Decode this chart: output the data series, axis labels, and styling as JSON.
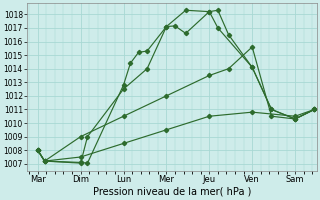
{
  "xlabel": "Pression niveau de la mer( hPa )",
  "xlabels": [
    "Mar",
    "Dim",
    "Lun",
    "Mer",
    "Jeu",
    "Ven",
    "Sam"
  ],
  "ylim": [
    1006.5,
    1018.8
  ],
  "yticks": [
    1007,
    1008,
    1009,
    1010,
    1011,
    1012,
    1013,
    1014,
    1015,
    1016,
    1017,
    1018
  ],
  "background_color": "#ceecea",
  "grid_color": "#a8d8d4",
  "line_color": "#2d6b2d",
  "figsize": [
    3.2,
    2.0
  ],
  "dpi": 100,
  "line1_x": [
    0,
    0.16,
    1.0,
    1.16,
    2.0,
    2.16,
    2.35,
    2.55,
    3.0,
    3.2,
    3.45,
    4.0,
    4.2,
    4.45,
    5.0,
    5.45,
    6.0,
    6.45
  ],
  "line1_y": [
    1008.0,
    1007.2,
    1007.1,
    1007.05,
    1012.8,
    1014.4,
    1015.2,
    1015.3,
    1017.1,
    1017.15,
    1016.6,
    1018.2,
    1018.3,
    1016.5,
    1014.1,
    1011.0,
    1010.3,
    1011.0
  ],
  "line2_x": [
    0,
    0.16,
    1.0,
    1.16,
    2.0,
    2.55,
    3.0,
    3.45,
    4.0,
    4.2,
    5.0,
    5.45,
    6.0,
    6.45
  ],
  "line2_y": [
    1008.0,
    1007.2,
    1007.05,
    1009.0,
    1012.5,
    1014.0,
    1017.1,
    1018.3,
    1018.2,
    1017.0,
    1014.1,
    1011.0,
    1010.3,
    1011.0
  ],
  "line3_x": [
    0,
    0.16,
    1.0,
    2.0,
    3.0,
    4.0,
    4.45,
    5.0,
    5.45,
    6.0,
    6.45
  ],
  "line3_y": [
    1008.0,
    1007.2,
    1009.0,
    1010.5,
    1012.0,
    1013.5,
    1014.0,
    1015.6,
    1010.5,
    1010.3,
    1011.0
  ],
  "line4_x": [
    0,
    0.16,
    1.0,
    2.0,
    3.0,
    4.0,
    5.0,
    6.0,
    6.45
  ],
  "line4_y": [
    1008.0,
    1007.2,
    1007.5,
    1008.5,
    1009.5,
    1010.5,
    1010.8,
    1010.5,
    1011.0
  ]
}
